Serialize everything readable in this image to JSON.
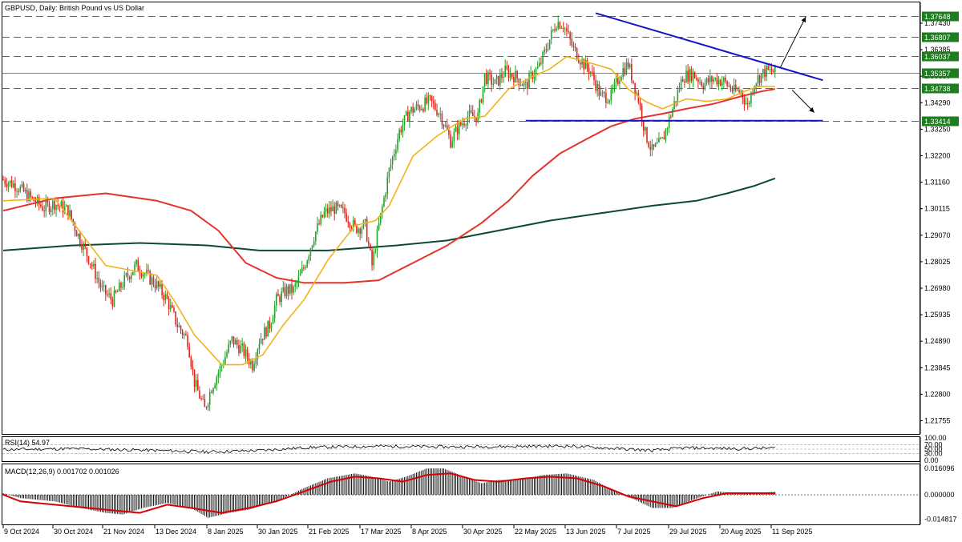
{
  "header": {
    "symbol_title": "GBPUSD, Daily:  British Pound vs US Dollar"
  },
  "colors": {
    "bull": "#27a02e",
    "bear": "#e0261e",
    "ma_fast": "#f2b21b",
    "ma_mid": "#e3342b",
    "ma_slow": "#0d4a33",
    "trendline": "#1414c8",
    "level_box": "#1e7d1e",
    "rsi_line": "#000000",
    "macd_signal": "#d60000",
    "macd_hist": "#000000",
    "grid_dash": "#333333"
  },
  "chart_data": [
    {
      "type": "candlestick",
      "title": "GBPUSD, Daily:  British Pound vs US Dollar",
      "x_tick_labels": [
        "9 Oct 2024",
        "30 Oct 2024",
        "21 Nov 2024",
        "13 Dec 2024",
        "8 Jan 2025",
        "30 Jan 2025",
        "21 Feb 2025",
        "17 Mar 2025",
        "8 Apr 2025",
        "30 Apr 2025",
        "22 May 2025",
        "13 Jun 2025",
        "7 Jul 2025",
        "29 Jul 2025",
        "20 Aug 2025",
        "11 Sep 2025"
      ],
      "y_tick_labels": [
        "1.37430",
        "1.36385",
        "1.35330",
        "1.34290",
        "1.33250",
        "1.32200",
        "1.31160",
        "1.30115",
        "1.29070",
        "1.28025",
        "1.26980",
        "1.25935",
        "1.24890",
        "1.23845",
        "1.22800",
        "1.21755"
      ],
      "ylim": [
        1.2085,
        1.3815
      ],
      "grid": false,
      "horizontal_levels": [
        {
          "label": "1.37648",
          "value": 1.37648,
          "style": "dashed"
        },
        {
          "label": "1.36807",
          "value": 1.36807,
          "style": "dashed"
        },
        {
          "label": "1.36037",
          "value": 1.36037,
          "style": "dashed"
        },
        {
          "label": "1.35357",
          "value": 1.35357,
          "style": "solid"
        },
        {
          "label": "1.34738",
          "value": 1.34738,
          "style": "dashed"
        },
        {
          "label": "1.33414",
          "value": 1.33414,
          "style": "dashed"
        }
      ],
      "series": [
        {
          "kind": "price",
          "close_path": [
            [
              0,
              1.3105
            ],
            [
              8,
              1.308
            ],
            [
              16,
              1.303
            ],
            [
              24,
              1.299
            ],
            [
              30,
              1.301
            ],
            [
              38,
              1.298
            ],
            [
              44,
              1.288
            ],
            [
              52,
              1.276
            ],
            [
              58,
              1.266
            ],
            [
              64,
              1.262
            ],
            [
              72,
              1.271
            ],
            [
              78,
              1.276
            ],
            [
              84,
              1.272
            ],
            [
              90,
              1.268
            ],
            [
              96,
              1.262
            ],
            [
              102,
              1.252
            ],
            [
              108,
              1.246
            ],
            [
              112,
              1.229
            ],
            [
              118,
              1.218
            ],
            [
              122,
              1.227
            ],
            [
              128,
              1.236
            ],
            [
              134,
              1.246
            ],
            [
              140,
              1.242
            ],
            [
              146,
              1.236
            ],
            [
              150,
              1.246
            ],
            [
              156,
              1.252
            ],
            [
              160,
              1.262
            ],
            [
              166,
              1.266
            ],
            [
              170,
              1.266
            ],
            [
              176,
              1.275
            ],
            [
              182,
              1.288
            ],
            [
              188,
              1.297
            ],
            [
              194,
              1.299
            ],
            [
              200,
              1.297
            ],
            [
              206,
              1.291
            ],
            [
              212,
              1.292
            ],
            [
              216,
              1.276
            ],
            [
              220,
              1.292
            ],
            [
              226,
              1.314
            ],
            [
              232,
              1.33
            ],
            [
              238,
              1.338
            ],
            [
              244,
              1.34
            ],
            [
              250,
              1.342
            ],
            [
              256,
              1.337
            ],
            [
              262,
              1.326
            ],
            [
              266,
              1.331
            ],
            [
              272,
              1.336
            ],
            [
              278,
              1.336
            ],
            [
              282,
              1.352
            ],
            [
              288,
              1.349
            ],
            [
              294,
              1.354
            ],
            [
              300,
              1.352
            ],
            [
              306,
              1.348
            ],
            [
              310,
              1.353
            ],
            [
              314,
              1.356
            ],
            [
              320,
              1.367
            ],
            [
              324,
              1.374
            ],
            [
              328,
              1.373
            ],
            [
              334,
              1.363
            ],
            [
              340,
              1.357
            ],
            [
              344,
              1.354
            ],
            [
              350,
              1.344
            ],
            [
              356,
              1.344
            ],
            [
              362,
              1.354
            ],
            [
              366,
              1.357
            ],
            [
              372,
              1.343
            ],
            [
              376,
              1.329
            ],
            [
              380,
              1.322
            ],
            [
              386,
              1.326
            ],
            [
              392,
              1.339
            ],
            [
              398,
              1.352
            ],
            [
              404,
              1.353
            ],
            [
              410,
              1.349
            ],
            [
              416,
              1.351
            ],
            [
              422,
              1.35
            ],
            [
              428,
              1.346
            ],
            [
              432,
              1.346
            ],
            [
              436,
              1.34
            ],
            [
              440,
              1.35
            ],
            [
              446,
              1.354
            ],
            [
              452,
              1.354
            ]
          ]
        },
        {
          "kind": "ma_fast",
          "points": [
            [
              0,
              1.302
            ],
            [
              30,
              1.303
            ],
            [
              60,
              1.276
            ],
            [
              90,
              1.272
            ],
            [
              100,
              1.262
            ],
            [
              112,
              1.248
            ],
            [
              128,
              1.236
            ],
            [
              140,
              1.236
            ],
            [
              152,
              1.24
            ],
            [
              164,
              1.252
            ],
            [
              176,
              1.262
            ],
            [
              190,
              1.278
            ],
            [
              206,
              1.292
            ],
            [
              218,
              1.294
            ],
            [
              226,
              1.3
            ],
            [
              240,
              1.32
            ],
            [
              254,
              1.328
            ],
            [
              270,
              1.335
            ],
            [
              282,
              1.336
            ],
            [
              296,
              1.347
            ],
            [
              310,
              1.352
            ],
            [
              320,
              1.355
            ],
            [
              330,
              1.36
            ],
            [
              346,
              1.357
            ],
            [
              356,
              1.355
            ],
            [
              366,
              1.347
            ],
            [
              376,
              1.342
            ],
            [
              386,
              1.339
            ],
            [
              400,
              1.343
            ],
            [
              412,
              1.342
            ],
            [
              424,
              1.343
            ],
            [
              434,
              1.346
            ],
            [
              442,
              1.348
            ],
            [
              452,
              1.348
            ]
          ]
        },
        {
          "kind": "ma_mid",
          "points": [
            [
              0,
              1.298
            ],
            [
              30,
              1.303
            ],
            [
              60,
              1.305
            ],
            [
              90,
              1.302
            ],
            [
              110,
              1.298
            ],
            [
              126,
              1.29
            ],
            [
              142,
              1.277
            ],
            [
              160,
              1.271
            ],
            [
              176,
              1.269
            ],
            [
              200,
              1.269
            ],
            [
              220,
              1.27
            ],
            [
              240,
              1.277
            ],
            [
              260,
              1.284
            ],
            [
              280,
              1.293
            ],
            [
              296,
              1.302
            ],
            [
              310,
              1.312
            ],
            [
              326,
              1.321
            ],
            [
              342,
              1.327
            ],
            [
              356,
              1.332
            ],
            [
              370,
              1.335
            ],
            [
              386,
              1.337
            ],
            [
              400,
              1.339
            ],
            [
              416,
              1.341
            ],
            [
              432,
              1.344
            ],
            [
              444,
              1.346
            ],
            [
              452,
              1.347
            ]
          ]
        },
        {
          "kind": "ma_slow",
          "points": [
            [
              0,
              1.282
            ],
            [
              40,
              1.284
            ],
            [
              80,
              1.285
            ],
            [
              120,
              1.284
            ],
            [
              150,
              1.282
            ],
            [
              190,
              1.282
            ],
            [
              230,
              1.284
            ],
            [
              260,
              1.286
            ],
            [
              290,
              1.29
            ],
            [
              320,
              1.294
            ],
            [
              350,
              1.297
            ],
            [
              380,
              1.3
            ],
            [
              406,
              1.302
            ],
            [
              424,
              1.305
            ],
            [
              440,
              1.308
            ],
            [
              452,
              1.311
            ]
          ]
        },
        {
          "kind": "trendline",
          "points": [
            [
              347,
              1.3775
            ],
            [
              480,
              1.3505
            ]
          ]
        },
        {
          "kind": "trendline",
          "points": [
            [
              306,
              1.3342
            ],
            [
              480,
              1.3342
            ]
          ]
        }
      ],
      "annotations": [
        {
          "kind": "arrow",
          "direction": "up-right"
        },
        {
          "kind": "arrow",
          "direction": "down-right"
        }
      ]
    },
    {
      "type": "line",
      "title": "RSI(14) 54.97",
      "value": 54.97,
      "levels": [
        100,
        70,
        50,
        30,
        0
      ],
      "y_tick_labels": [
        "100.00",
        "70.00",
        "50.00",
        "30.00",
        "0.00"
      ],
      "ylim": [
        0,
        100
      ],
      "series": [
        {
          "points": [
            [
              0,
              48
            ],
            [
              40,
              52
            ],
            [
              80,
              46
            ],
            [
              120,
              38
            ],
            [
              150,
              44
            ],
            [
              180,
              58
            ],
            [
              220,
              63
            ],
            [
              260,
              60
            ],
            [
              300,
              62
            ],
            [
              330,
              64
            ],
            [
              360,
              52
            ],
            [
              380,
              44
            ],
            [
              400,
              56
            ],
            [
              430,
              52
            ],
            [
              452,
              55
            ]
          ]
        }
      ]
    },
    {
      "type": "bar",
      "title": "MACD(12,26,9) 0.001702 0.001026",
      "macd": 0.001702,
      "signal": 0.001026,
      "y_tick_labels": [
        "0.016096",
        "0.000000",
        "-0.014817"
      ],
      "ylim": [
        -0.0175,
        0.018
      ],
      "histogram_path": [
        [
          0,
          0.001
        ],
        [
          10,
          -0.002
        ],
        [
          30,
          -0.004
        ],
        [
          50,
          -0.009
        ],
        [
          60,
          -0.011
        ],
        [
          70,
          -0.012
        ],
        [
          82,
          -0.008
        ],
        [
          96,
          -0.005
        ],
        [
          110,
          -0.008
        ],
        [
          120,
          -0.014
        ],
        [
          132,
          -0.011
        ],
        [
          144,
          -0.009
        ],
        [
          160,
          -0.004
        ],
        [
          176,
          0.004
        ],
        [
          190,
          0.01
        ],
        [
          206,
          0.013
        ],
        [
          216,
          0.011
        ],
        [
          226,
          0.008
        ],
        [
          236,
          0.011
        ],
        [
          248,
          0.016
        ],
        [
          258,
          0.016
        ],
        [
          270,
          0.011
        ],
        [
          280,
          0.007
        ],
        [
          290,
          0.009
        ],
        [
          302,
          0.009
        ],
        [
          316,
          0.012
        ],
        [
          330,
          0.013
        ],
        [
          346,
          0.009
        ],
        [
          358,
          0.002
        ],
        [
          370,
          -0.003
        ],
        [
          380,
          -0.008
        ],
        [
          392,
          -0.008
        ],
        [
          404,
          -0.003
        ],
        [
          418,
          0.002
        ],
        [
          432,
          0.001
        ],
        [
          452,
          0.0017
        ]
      ],
      "signal_path": [
        [
          0,
          0.0
        ],
        [
          10,
          -0.004
        ],
        [
          30,
          -0.006
        ],
        [
          50,
          -0.008
        ],
        [
          70,
          -0.01
        ],
        [
          80,
          -0.011
        ],
        [
          96,
          -0.006
        ],
        [
          110,
          -0.008
        ],
        [
          128,
          -0.011
        ],
        [
          144,
          -0.008
        ],
        [
          160,
          -0.004
        ],
        [
          176,
          0.002
        ],
        [
          192,
          0.008
        ],
        [
          206,
          0.011
        ],
        [
          220,
          0.01
        ],
        [
          234,
          0.008
        ],
        [
          248,
          0.012
        ],
        [
          262,
          0.013
        ],
        [
          276,
          0.009
        ],
        [
          290,
          0.008
        ],
        [
          306,
          0.01
        ],
        [
          320,
          0.011
        ],
        [
          336,
          0.01
        ],
        [
          352,
          0.005
        ],
        [
          366,
          -0.001
        ],
        [
          380,
          -0.004
        ],
        [
          394,
          -0.007
        ],
        [
          410,
          -0.002
        ],
        [
          424,
          0.001
        ],
        [
          440,
          0.001
        ],
        [
          452,
          0.001
        ]
      ]
    }
  ]
}
